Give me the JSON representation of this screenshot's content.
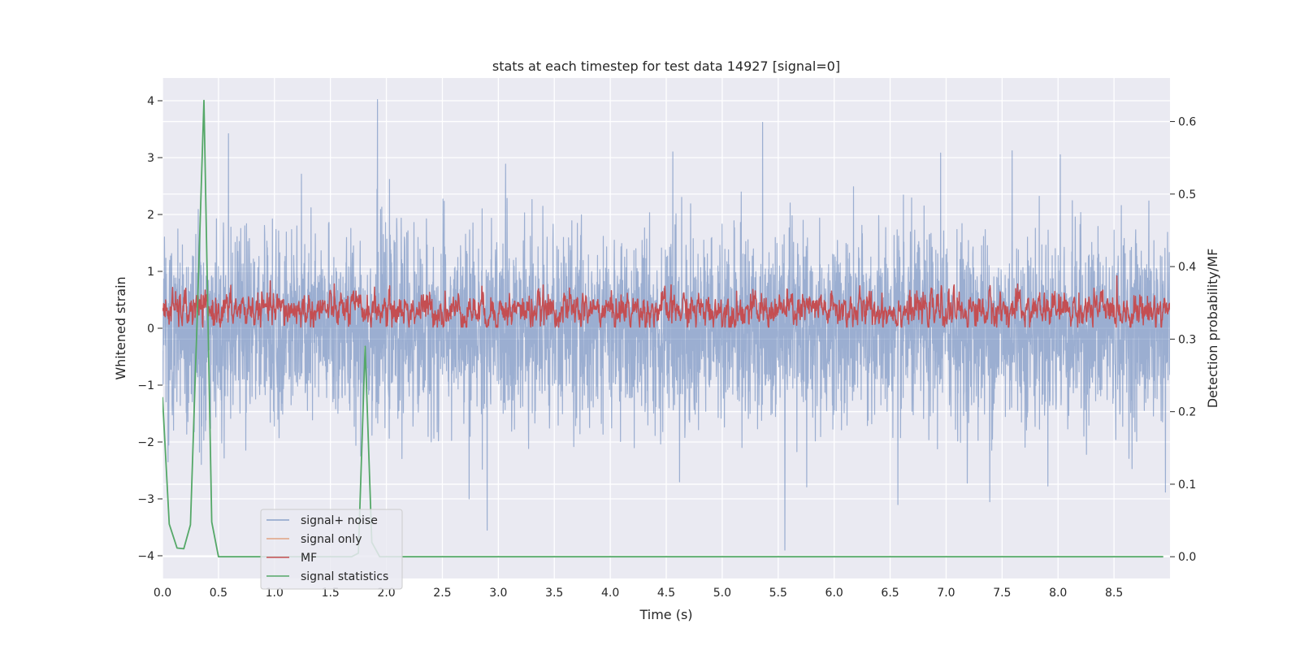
{
  "chart_data": {
    "type": "line",
    "title": "stats at each timestep for test data 14927 [signal=0]",
    "xlabel": "Time (s)",
    "ylabel": "Whitened strain",
    "y2label": "Detection probability/MF",
    "xlim": [
      0.0,
      9.0
    ],
    "ylim": [
      -4.4,
      4.4
    ],
    "y2lim": [
      -0.03,
      0.66
    ],
    "xticks": [
      "0.0",
      "0.5",
      "1.0",
      "1.5",
      "2.0",
      "2.5",
      "3.0",
      "3.5",
      "4.0",
      "4.5",
      "5.0",
      "5.5",
      "6.0",
      "6.5",
      "7.0",
      "7.5",
      "8.0",
      "8.5"
    ],
    "yticks": [
      "4",
      "3",
      "2",
      "1",
      "0",
      "−1",
      "−2",
      "−3",
      "−4"
    ],
    "y2ticks": [
      "0.6",
      "0.5",
      "0.4",
      "0.3",
      "0.2",
      "0.1",
      "0.0"
    ],
    "grid": true,
    "legend_position": "lower-left",
    "series": [
      {
        "name": "signal+ noise",
        "axis": "left",
        "color": "#4c72b0",
        "description": "noise-like strain sampled at 2048 Hz over 9 s, mostly within ±2",
        "envelope": {
          "mean": 0.0,
          "std": 0.82,
          "max": 4.02,
          "min": -3.9
        },
        "peaks": [
          [
            0.59,
            3.42
          ],
          [
            1.92,
            4.02
          ],
          [
            5.36,
            3.62
          ],
          [
            4.56,
            3.1
          ],
          [
            6.95,
            3.08
          ],
          [
            8.02,
            3.05
          ],
          [
            7.59,
            3.12
          ],
          [
            2.9,
            -3.55
          ],
          [
            5.56,
            -3.9
          ],
          [
            6.57,
            -3.1
          ],
          [
            7.39,
            -3.05
          ],
          [
            2.74,
            -3.0
          ],
          [
            8.96,
            -2.88
          ],
          [
            4.62,
            -2.7
          ]
        ]
      },
      {
        "name": "signal only",
        "axis": "left",
        "color": "#dd8452",
        "values": []
      },
      {
        "name": "MF",
        "axis": "left",
        "color": "#c44e52",
        "description": "matched filter output fluctuating between about 0.0 and 1.0",
        "envelope": {
          "mean": 0.32,
          "min": 0.0,
          "max": 1.0
        }
      },
      {
        "name": "signal statistics",
        "axis": "right",
        "color": "#55a868",
        "x": [
          0.0,
          0.06,
          0.13,
          0.19,
          0.25,
          0.31,
          0.37,
          0.44,
          0.5,
          0.56,
          0.62,
          0.69,
          0.75,
          0.81,
          0.87,
          0.94,
          1.0,
          1.06,
          1.12,
          1.19,
          1.25,
          1.31,
          1.37,
          1.44,
          1.5,
          1.56,
          1.62,
          1.69,
          1.75,
          1.81,
          1.87,
          1.94,
          2.0,
          2.06,
          2.12,
          2.19,
          2.25,
          2.31,
          2.37,
          2.44,
          2.5,
          2.56,
          2.62,
          2.69,
          2.75,
          2.81,
          2.87,
          2.94,
          3.0,
          3.06,
          3.12,
          3.19,
          3.25,
          3.31,
          3.37,
          3.44,
          3.5,
          3.56,
          3.62,
          3.69,
          3.75,
          3.81,
          3.87,
          3.94,
          4.0,
          4.06,
          4.12,
          4.19,
          4.25,
          4.31,
          4.37,
          4.44,
          4.5,
          4.56,
          4.62,
          4.69,
          4.75,
          4.81,
          4.87,
          4.94,
          5.0,
          5.06,
          5.12,
          5.19,
          5.25,
          5.31,
          5.37,
          5.44,
          5.5,
          5.56,
          5.62,
          5.69,
          5.75,
          5.81,
          5.87,
          5.94,
          6.0,
          6.06,
          6.12,
          6.19,
          6.25,
          6.31,
          6.37,
          6.44,
          6.5,
          6.56,
          6.62,
          6.69,
          6.75,
          6.81,
          6.87,
          6.94,
          7.0,
          7.06,
          7.12,
          7.19,
          7.25,
          7.31,
          7.37,
          7.44,
          7.5,
          7.56,
          7.62,
          7.69,
          7.75,
          7.81,
          7.87,
          7.94,
          8.0,
          8.06,
          8.12,
          8.19,
          8.25,
          8.31,
          8.37,
          8.44,
          8.5,
          8.56,
          8.62,
          8.69,
          8.75,
          8.81,
          8.87,
          8.94
        ],
        "values": [
          0.22,
          0.045,
          0.012,
          0.011,
          0.044,
          0.33,
          0.629,
          0.048,
          0.0,
          0.0,
          0.0,
          0.0,
          0.0,
          0.0,
          0.0,
          0.0,
          0.0,
          0.0,
          0.0,
          0.0,
          0.0,
          0.0,
          0.0,
          0.0,
          0.0,
          0.0,
          0.0,
          0.0,
          0.005,
          0.29,
          0.02,
          0.0,
          0.0,
          0.0,
          0.0,
          0.0,
          0.0,
          0.0,
          0.0,
          0.0,
          0.0,
          0.0,
          0.0,
          0.0,
          0.0,
          0.0,
          0.0,
          0.0,
          0.0,
          0.0,
          0.0,
          0.0,
          0.0,
          0.0,
          0.0,
          0.0,
          0.0,
          0.0,
          0.0,
          0.0,
          0.0,
          0.0,
          0.0,
          0.0,
          0.0,
          0.0,
          0.0,
          0.0,
          0.0,
          0.0,
          0.0,
          0.0,
          0.0,
          0.0,
          0.0,
          0.0,
          0.0,
          0.0,
          0.0,
          0.0,
          0.0,
          0.0,
          0.0,
          0.0,
          0.0,
          0.0,
          0.0,
          0.0,
          0.0,
          0.0,
          0.0,
          0.0,
          0.0,
          0.0,
          0.0,
          0.0,
          0.0,
          0.0,
          0.0,
          0.0,
          0.0,
          0.0,
          0.0,
          0.0,
          0.0,
          0.0,
          0.0,
          0.0,
          0.0,
          0.0,
          0.0,
          0.0,
          0.0,
          0.0,
          0.0,
          0.0,
          0.0,
          0.0,
          0.0,
          0.0,
          0.0,
          0.0,
          0.0,
          0.0,
          0.0,
          0.0,
          0.0,
          0.0,
          0.0,
          0.0,
          0.0,
          0.0,
          0.0,
          0.0,
          0.0,
          0.0,
          0.0,
          0.0,
          0.0,
          0.0,
          0.0,
          0.0,
          0.0,
          0.0
        ]
      }
    ]
  }
}
